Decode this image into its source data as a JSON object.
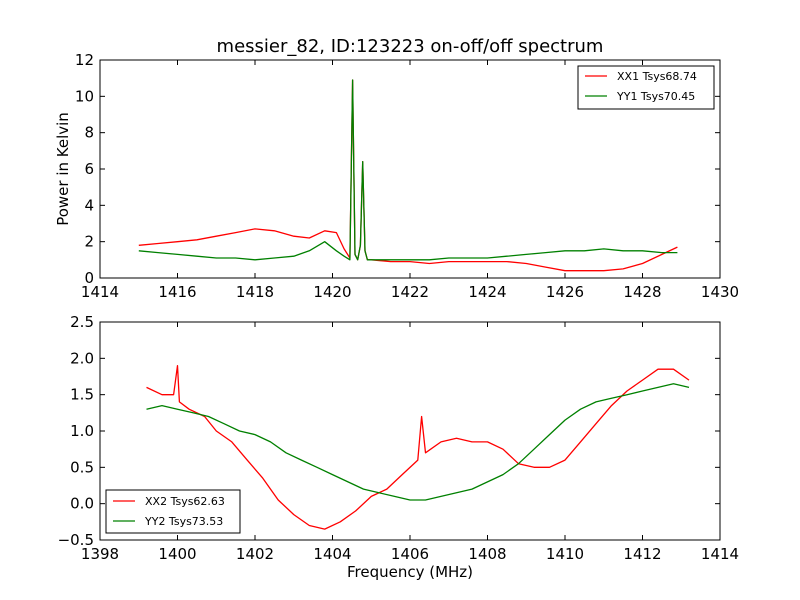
{
  "chart_data": [
    {
      "type": "line",
      "title": "messier_82, ID:123223 on-off/off spectrum",
      "xlabel": "",
      "ylabel": "Power in Kelvin",
      "xlim": [
        1414,
        1430
      ],
      "ylim": [
        0,
        12
      ],
      "xticks": [
        "1414",
        "1416",
        "1418",
        "1420",
        "1422",
        "1424",
        "1426",
        "1428",
        "1430"
      ],
      "yticks": [
        "0",
        "2",
        "4",
        "6",
        "8",
        "10",
        "12"
      ],
      "legend": "top-right",
      "series": [
        {
          "name": "XX1 Tsys68.74",
          "color": "#ff0000",
          "x": [
            1415.0,
            1415.5,
            1416.0,
            1416.5,
            1417.0,
            1417.5,
            1418.0,
            1418.5,
            1419.0,
            1419.4,
            1419.8,
            1420.1,
            1420.3,
            1420.45,
            1420.52,
            1420.58,
            1420.65,
            1420.72,
            1420.78,
            1420.84,
            1420.9,
            1421.0,
            1421.5,
            1422.0,
            1422.5,
            1423.0,
            1423.5,
            1424.0,
            1424.5,
            1425.0,
            1425.5,
            1426.0,
            1426.5,
            1427.0,
            1427.5,
            1428.0,
            1428.5,
            1428.9
          ],
          "y": [
            1.8,
            1.9,
            2.0,
            2.1,
            2.3,
            2.5,
            2.7,
            2.6,
            2.3,
            2.2,
            2.6,
            2.5,
            1.6,
            1.1,
            10.9,
            1.3,
            1.0,
            1.8,
            6.4,
            1.5,
            1.0,
            1.0,
            0.9,
            0.9,
            0.8,
            0.9,
            0.9,
            0.9,
            0.9,
            0.8,
            0.6,
            0.4,
            0.4,
            0.4,
            0.5,
            0.8,
            1.3,
            1.7
          ]
        },
        {
          "name": "YY1 Tsys70.45",
          "color": "#008000",
          "x": [
            1415.0,
            1415.5,
            1416.0,
            1416.5,
            1417.0,
            1417.5,
            1418.0,
            1418.5,
            1419.0,
            1419.4,
            1419.8,
            1420.1,
            1420.3,
            1420.45,
            1420.52,
            1420.58,
            1420.65,
            1420.72,
            1420.78,
            1420.84,
            1420.9,
            1421.0,
            1421.5,
            1422.0,
            1422.5,
            1423.0,
            1423.5,
            1424.0,
            1424.5,
            1425.0,
            1425.5,
            1426.0,
            1426.5,
            1427.0,
            1427.5,
            1428.0,
            1428.5,
            1428.9
          ],
          "y": [
            1.5,
            1.4,
            1.3,
            1.2,
            1.1,
            1.1,
            1.0,
            1.1,
            1.2,
            1.5,
            2.0,
            1.5,
            1.2,
            1.0,
            10.9,
            1.3,
            1.0,
            1.8,
            6.4,
            1.5,
            1.0,
            1.0,
            1.0,
            1.0,
            1.0,
            1.1,
            1.1,
            1.1,
            1.2,
            1.3,
            1.4,
            1.5,
            1.5,
            1.6,
            1.5,
            1.5,
            1.4,
            1.4
          ]
        }
      ]
    },
    {
      "type": "line",
      "title": "",
      "xlabel": "Frequency (MHz)",
      "ylabel": "",
      "xlim": [
        1398,
        1414
      ],
      "ylim": [
        -0.5,
        2.5
      ],
      "xticks": [
        "1398",
        "1400",
        "1402",
        "1404",
        "1406",
        "1408",
        "1410",
        "1412",
        "1414"
      ],
      "yticks": [
        "−0.5",
        "0.0",
        "0.5",
        "1.0",
        "1.5",
        "2.0",
        "2.5"
      ],
      "legend": "bottom-left",
      "series": [
        {
          "name": "XX2 Tsys62.63",
          "color": "#ff0000",
          "x": [
            1399.2,
            1399.6,
            1399.9,
            1400.0,
            1400.05,
            1400.3,
            1400.7,
            1401.0,
            1401.4,
            1401.8,
            1402.2,
            1402.6,
            1403.0,
            1403.4,
            1403.8,
            1404.2,
            1404.6,
            1405.0,
            1405.4,
            1405.8,
            1406.2,
            1406.3,
            1406.4,
            1406.8,
            1407.2,
            1407.6,
            1408.0,
            1408.4,
            1408.8,
            1409.2,
            1409.6,
            1410.0,
            1410.4,
            1410.8,
            1411.2,
            1411.6,
            1412.0,
            1412.4,
            1412.8,
            1413.2
          ],
          "y": [
            1.6,
            1.5,
            1.5,
            1.9,
            1.4,
            1.3,
            1.2,
            1.0,
            0.85,
            0.6,
            0.35,
            0.05,
            -0.15,
            -0.3,
            -0.35,
            -0.25,
            -0.1,
            0.1,
            0.2,
            0.4,
            0.6,
            1.2,
            0.7,
            0.85,
            0.9,
            0.85,
            0.85,
            0.75,
            0.55,
            0.5,
            0.5,
            0.6,
            0.85,
            1.1,
            1.35,
            1.55,
            1.7,
            1.85,
            1.85,
            1.7
          ]
        },
        {
          "name": "YY2 Tsys73.53",
          "color": "#008000",
          "x": [
            1399.2,
            1399.6,
            1400.0,
            1400.4,
            1400.8,
            1401.2,
            1401.6,
            1402.0,
            1402.4,
            1402.8,
            1403.2,
            1403.6,
            1404.0,
            1404.4,
            1404.8,
            1405.2,
            1405.6,
            1406.0,
            1406.4,
            1406.8,
            1407.2,
            1407.6,
            1408.0,
            1408.4,
            1408.8,
            1409.2,
            1409.6,
            1410.0,
            1410.4,
            1410.8,
            1411.2,
            1411.6,
            1412.0,
            1412.4,
            1412.8,
            1413.2
          ],
          "y": [
            1.3,
            1.35,
            1.3,
            1.25,
            1.2,
            1.1,
            1.0,
            0.95,
            0.85,
            0.7,
            0.6,
            0.5,
            0.4,
            0.3,
            0.2,
            0.15,
            0.1,
            0.05,
            0.05,
            0.1,
            0.15,
            0.2,
            0.3,
            0.4,
            0.55,
            0.75,
            0.95,
            1.15,
            1.3,
            1.4,
            1.45,
            1.5,
            1.55,
            1.6,
            1.65,
            1.6
          ]
        }
      ]
    }
  ]
}
